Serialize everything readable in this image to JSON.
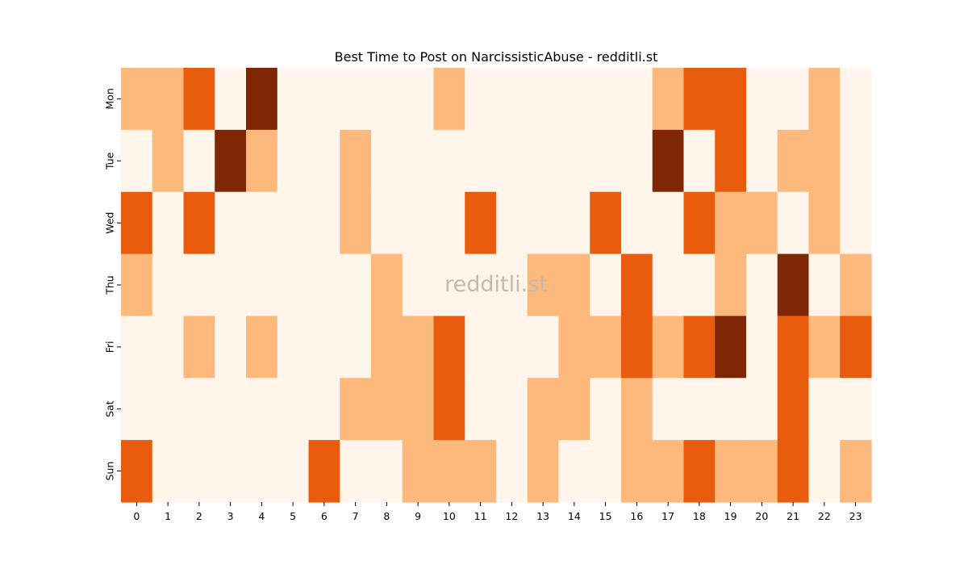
{
  "chart_data": {
    "type": "heatmap",
    "title": "Best Time to Post on NarcissisticAbuse - redditli.st",
    "xlabel": "",
    "ylabel": "",
    "x_categories": [
      "0",
      "1",
      "2",
      "3",
      "4",
      "5",
      "6",
      "7",
      "8",
      "9",
      "10",
      "11",
      "12",
      "13",
      "14",
      "15",
      "16",
      "17",
      "18",
      "19",
      "20",
      "21",
      "22",
      "23"
    ],
    "y_categories": [
      "Mon",
      "Tue",
      "Wed",
      "Thu",
      "Fri",
      "Sat",
      "Sun"
    ],
    "levels": [
      0,
      1,
      2,
      3
    ],
    "values": [
      [
        1,
        1,
        2,
        0,
        3,
        0,
        0,
        0,
        0,
        0,
        1,
        0,
        0,
        0,
        0,
        0,
        0,
        1,
        2,
        2,
        0,
        0,
        1,
        0
      ],
      [
        0,
        1,
        0,
        3,
        1,
        0,
        0,
        1,
        0,
        0,
        0,
        0,
        0,
        0,
        0,
        0,
        0,
        3,
        0,
        2,
        0,
        1,
        1,
        0
      ],
      [
        2,
        0,
        2,
        0,
        0,
        0,
        0,
        1,
        0,
        0,
        0,
        2,
        0,
        0,
        0,
        2,
        0,
        0,
        2,
        1,
        1,
        0,
        1,
        0
      ],
      [
        1,
        0,
        0,
        0,
        0,
        0,
        0,
        0,
        1,
        0,
        0,
        0,
        0,
        1,
        1,
        0,
        2,
        0,
        0,
        1,
        0,
        3,
        0,
        1
      ],
      [
        0,
        0,
        1,
        0,
        1,
        0,
        0,
        0,
        1,
        1,
        2,
        0,
        0,
        0,
        1,
        1,
        2,
        1,
        2,
        3,
        0,
        2,
        1,
        2
      ],
      [
        0,
        0,
        0,
        0,
        0,
        0,
        0,
        1,
        1,
        1,
        2,
        0,
        0,
        1,
        1,
        0,
        1,
        0,
        0,
        0,
        0,
        2,
        0,
        0
      ],
      [
        2,
        0,
        0,
        0,
        0,
        0,
        2,
        0,
        0,
        1,
        1,
        1,
        0,
        1,
        0,
        0,
        1,
        1,
        2,
        1,
        1,
        2,
        0,
        1
      ]
    ],
    "colormap": "Oranges",
    "level_colors": [
      "#fff5eb",
      "#fdb87c",
      "#e95c0d",
      "#7f2704"
    ],
    "colorbar": false,
    "grid": false,
    "legend": "none"
  },
  "watermark": "redditli.st"
}
